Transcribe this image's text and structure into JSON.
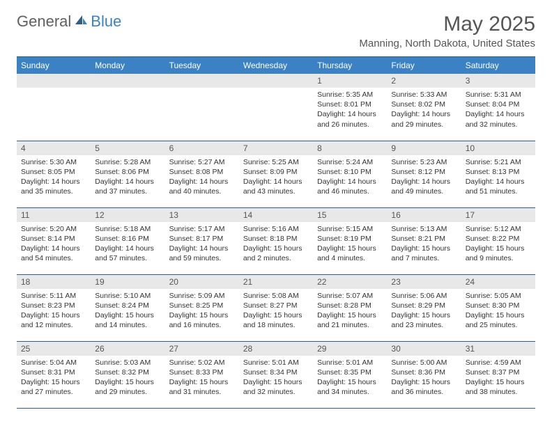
{
  "brand": {
    "name1": "General",
    "name2": "Blue"
  },
  "title": "May 2025",
  "location": "Manning, North Dakota, United States",
  "colors": {
    "header_bg": "#3b82c4",
    "rule": "#2f5d8c",
    "daynum_bg": "#e8e8e8"
  },
  "weekdays": [
    "Sunday",
    "Monday",
    "Tuesday",
    "Wednesday",
    "Thursday",
    "Friday",
    "Saturday"
  ],
  "first_weekday_index": 4,
  "days_in_month": 31,
  "days": {
    "1": {
      "sunrise": "5:35 AM",
      "sunset": "8:01 PM",
      "daylight": "14 hours and 26 minutes."
    },
    "2": {
      "sunrise": "5:33 AM",
      "sunset": "8:02 PM",
      "daylight": "14 hours and 29 minutes."
    },
    "3": {
      "sunrise": "5:31 AM",
      "sunset": "8:04 PM",
      "daylight": "14 hours and 32 minutes."
    },
    "4": {
      "sunrise": "5:30 AM",
      "sunset": "8:05 PM",
      "daylight": "14 hours and 35 minutes."
    },
    "5": {
      "sunrise": "5:28 AM",
      "sunset": "8:06 PM",
      "daylight": "14 hours and 37 minutes."
    },
    "6": {
      "sunrise": "5:27 AM",
      "sunset": "8:08 PM",
      "daylight": "14 hours and 40 minutes."
    },
    "7": {
      "sunrise": "5:25 AM",
      "sunset": "8:09 PM",
      "daylight": "14 hours and 43 minutes."
    },
    "8": {
      "sunrise": "5:24 AM",
      "sunset": "8:10 PM",
      "daylight": "14 hours and 46 minutes."
    },
    "9": {
      "sunrise": "5:23 AM",
      "sunset": "8:12 PM",
      "daylight": "14 hours and 49 minutes."
    },
    "10": {
      "sunrise": "5:21 AM",
      "sunset": "8:13 PM",
      "daylight": "14 hours and 51 minutes."
    },
    "11": {
      "sunrise": "5:20 AM",
      "sunset": "8:14 PM",
      "daylight": "14 hours and 54 minutes."
    },
    "12": {
      "sunrise": "5:18 AM",
      "sunset": "8:16 PM",
      "daylight": "14 hours and 57 minutes."
    },
    "13": {
      "sunrise": "5:17 AM",
      "sunset": "8:17 PM",
      "daylight": "14 hours and 59 minutes."
    },
    "14": {
      "sunrise": "5:16 AM",
      "sunset": "8:18 PM",
      "daylight": "15 hours and 2 minutes."
    },
    "15": {
      "sunrise": "5:15 AM",
      "sunset": "8:19 PM",
      "daylight": "15 hours and 4 minutes."
    },
    "16": {
      "sunrise": "5:13 AM",
      "sunset": "8:21 PM",
      "daylight": "15 hours and 7 minutes."
    },
    "17": {
      "sunrise": "5:12 AM",
      "sunset": "8:22 PM",
      "daylight": "15 hours and 9 minutes."
    },
    "18": {
      "sunrise": "5:11 AM",
      "sunset": "8:23 PM",
      "daylight": "15 hours and 12 minutes."
    },
    "19": {
      "sunrise": "5:10 AM",
      "sunset": "8:24 PM",
      "daylight": "15 hours and 14 minutes."
    },
    "20": {
      "sunrise": "5:09 AM",
      "sunset": "8:25 PM",
      "daylight": "15 hours and 16 minutes."
    },
    "21": {
      "sunrise": "5:08 AM",
      "sunset": "8:27 PM",
      "daylight": "15 hours and 18 minutes."
    },
    "22": {
      "sunrise": "5:07 AM",
      "sunset": "8:28 PM",
      "daylight": "15 hours and 21 minutes."
    },
    "23": {
      "sunrise": "5:06 AM",
      "sunset": "8:29 PM",
      "daylight": "15 hours and 23 minutes."
    },
    "24": {
      "sunrise": "5:05 AM",
      "sunset": "8:30 PM",
      "daylight": "15 hours and 25 minutes."
    },
    "25": {
      "sunrise": "5:04 AM",
      "sunset": "8:31 PM",
      "daylight": "15 hours and 27 minutes."
    },
    "26": {
      "sunrise": "5:03 AM",
      "sunset": "8:32 PM",
      "daylight": "15 hours and 29 minutes."
    },
    "27": {
      "sunrise": "5:02 AM",
      "sunset": "8:33 PM",
      "daylight": "15 hours and 31 minutes."
    },
    "28": {
      "sunrise": "5:01 AM",
      "sunset": "8:34 PM",
      "daylight": "15 hours and 32 minutes."
    },
    "29": {
      "sunrise": "5:01 AM",
      "sunset": "8:35 PM",
      "daylight": "15 hours and 34 minutes."
    },
    "30": {
      "sunrise": "5:00 AM",
      "sunset": "8:36 PM",
      "daylight": "15 hours and 36 minutes."
    },
    "31": {
      "sunrise": "4:59 AM",
      "sunset": "8:37 PM",
      "daylight": "15 hours and 38 minutes."
    }
  }
}
